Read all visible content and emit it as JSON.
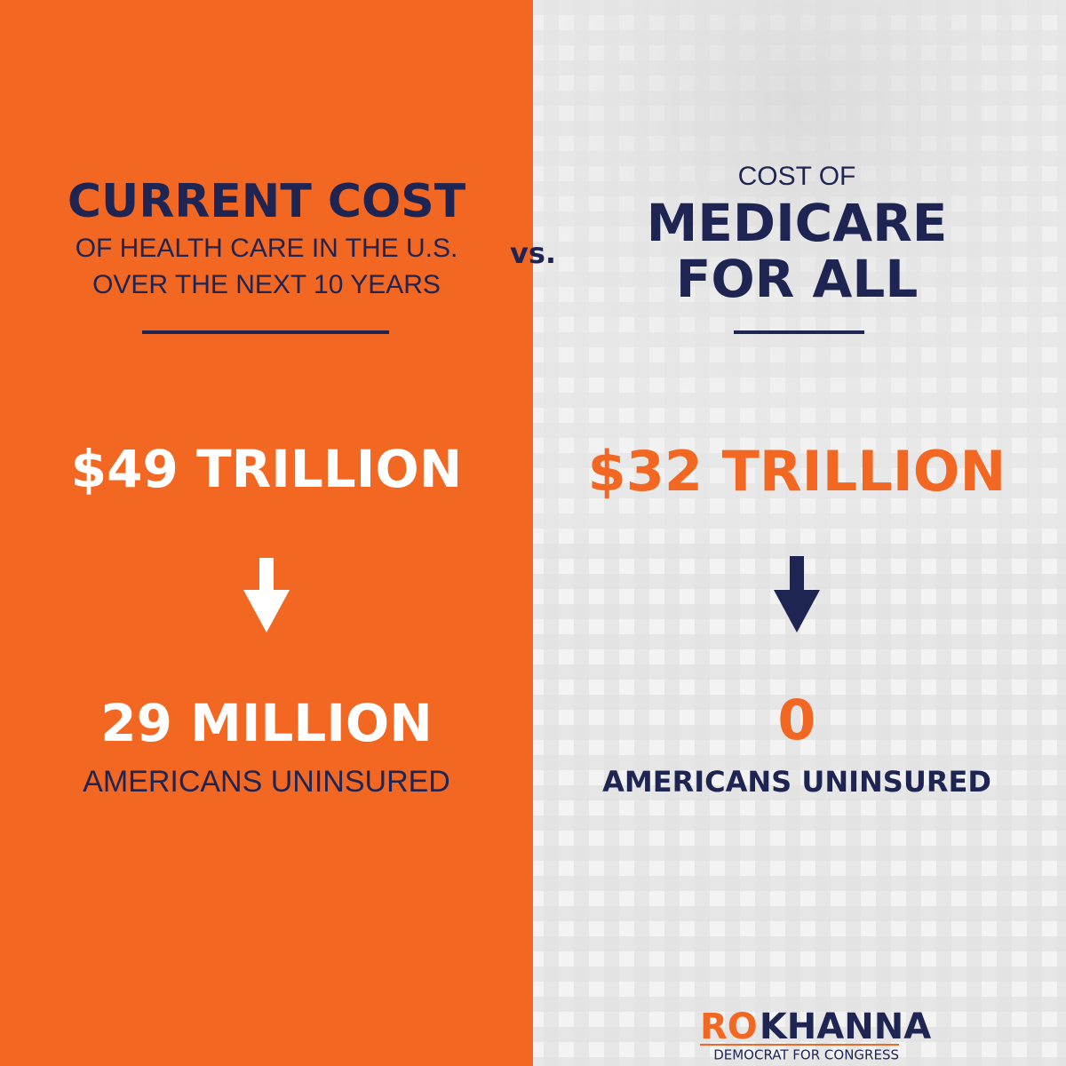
{
  "left": {
    "title": "CURRENT COST",
    "subtitle": [
      "OF HEALTH CARE IN THE U.S.",
      "OVER THE NEXT 10 YEARS"
    ],
    "amount": "$49 TRILLION",
    "uninsured_count": "29 MILLION",
    "uninsured_label": "AMERICANS UNINSURED"
  },
  "versus": "vs.",
  "right": {
    "kicker": "COST OF",
    "title": [
      "MEDICARE",
      "FOR ALL"
    ],
    "amount": "$32 TRILLION",
    "uninsured_count": "0",
    "uninsured_label": "AMERICANS UNINSURED"
  },
  "logo": {
    "first": "RO",
    "last": "KHANNA",
    "tagline": "DEMOCRAT FOR CONGRESS"
  }
}
